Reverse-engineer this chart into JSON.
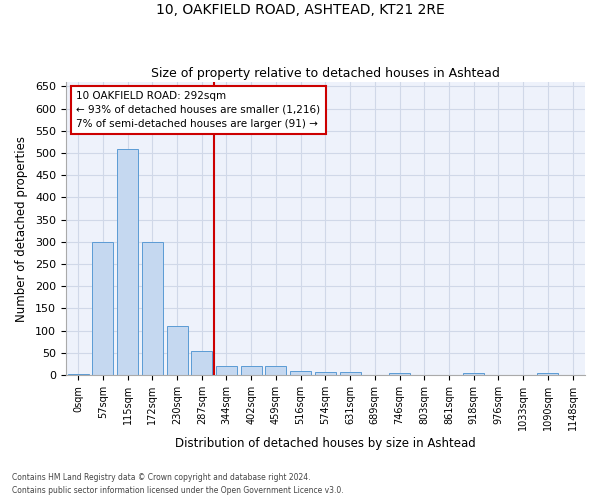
{
  "title1": "10, OAKFIELD ROAD, ASHTEAD, KT21 2RE",
  "title2": "Size of property relative to detached houses in Ashtead",
  "xlabel": "Distribution of detached houses by size in Ashtead",
  "ylabel": "Number of detached properties",
  "footnote1": "Contains HM Land Registry data © Crown copyright and database right 2024.",
  "footnote2": "Contains public sector information licensed under the Open Government Licence v3.0.",
  "annotation_line1": "10 OAKFIELD ROAD: 292sqm",
  "annotation_line2": "← 93% of detached houses are smaller (1,216)",
  "annotation_line3": "7% of semi-detached houses are larger (91) →",
  "bar_labels": [
    "0sqm",
    "57sqm",
    "115sqm",
    "172sqm",
    "230sqm",
    "287sqm",
    "344sqm",
    "402sqm",
    "459sqm",
    "516sqm",
    "574sqm",
    "631sqm",
    "689sqm",
    "746sqm",
    "803sqm",
    "861sqm",
    "918sqm",
    "976sqm",
    "1033sqm",
    "1090sqm",
    "1148sqm"
  ],
  "bar_values": [
    2,
    300,
    510,
    300,
    110,
    55,
    20,
    20,
    20,
    10,
    8,
    8,
    0,
    5,
    0,
    0,
    5,
    0,
    0,
    5,
    0
  ],
  "bar_color": "#c5d8f0",
  "bar_edge_color": "#5b9bd5",
  "grid_color": "#d0d8e8",
  "bg_color": "#eef2fb",
  "vline_color": "#cc0000",
  "annotation_box_color": "#cc0000",
  "ylim": [
    0,
    660
  ],
  "yticks": [
    0,
    50,
    100,
    150,
    200,
    250,
    300,
    350,
    400,
    450,
    500,
    550,
    600,
    650
  ]
}
